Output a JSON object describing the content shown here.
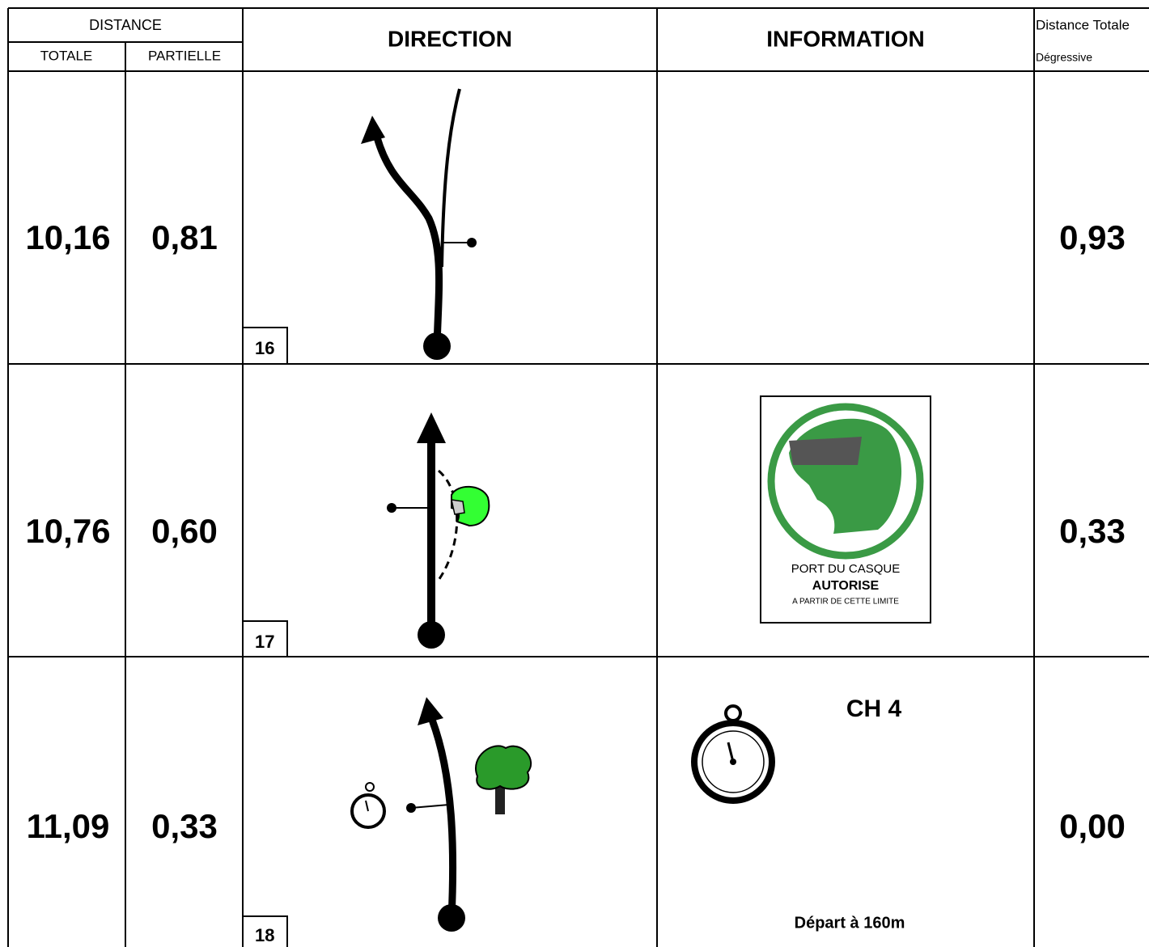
{
  "header": {
    "distance": "DISTANCE",
    "totale": "TOTALE",
    "partielle": "PARTIELLE",
    "direction": "DIRECTION",
    "information": "INFORMATION",
    "remaining_line1": "Distance Totale",
    "remaining_line2": "Dégressive"
  },
  "rows": [
    {
      "totale": "10,16",
      "partielle": "0,81",
      "number": "16",
      "remaining": "0,93"
    },
    {
      "totale": "10,76",
      "partielle": "0,60",
      "number": "17",
      "remaining": "0,33",
      "sign": [
        "PORT DU CASQUE",
        "AUTORISE",
        "A PARTIR DE CETTE LIMITE"
      ]
    },
    {
      "totale": "11,09",
      "partielle": "0,33",
      "number": "18",
      "remaining": "0,00",
      "info_title": "CH 4",
      "info_note": "Départ à 160m"
    }
  ]
}
